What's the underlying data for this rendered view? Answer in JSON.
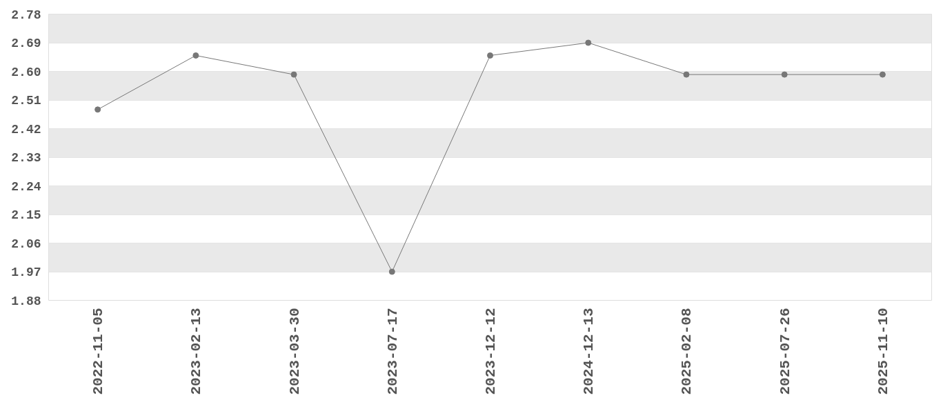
{
  "chart_data": {
    "type": "line",
    "categories": [
      "2022-11-05",
      "2023-02-13",
      "2023-03-30",
      "2023-07-17",
      "2023-12-12",
      "2024-12-13",
      "2025-02-08",
      "2025-07-26",
      "2025-11-10"
    ],
    "series": [
      {
        "color": "#777777",
        "values": [
          2.48,
          2.65,
          2.59,
          1.97,
          2.65,
          2.69,
          2.59,
          2.59,
          2.59
        ]
      }
    ],
    "ylim": [
      1.88,
      2.78
    ],
    "yticks": [
      1.88,
      1.97,
      2.06,
      2.15,
      2.24,
      2.33,
      2.42,
      2.51,
      {
        "value": 2.6,
        "label": "2.60"
      },
      2.69,
      2.78
    ],
    "grid": "y",
    "marker": "circle",
    "line_style": "solid"
  }
}
